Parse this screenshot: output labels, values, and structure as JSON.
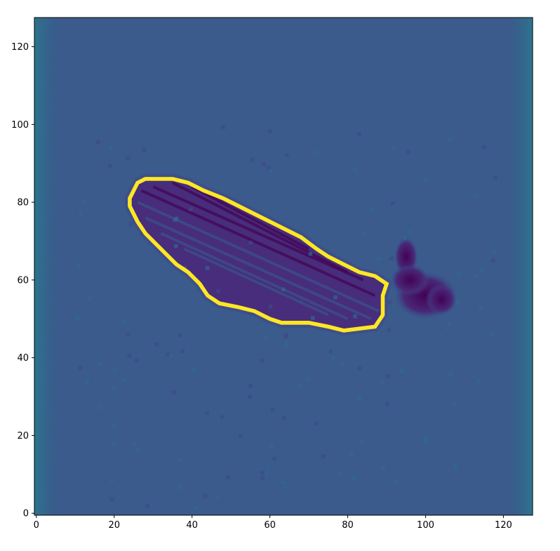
{
  "image": {
    "description_colormap": "viridis",
    "grid_size": [
      128,
      128
    ],
    "subject": "wing"
  },
  "axes": {
    "x_ticks": [
      "0",
      "20",
      "40",
      "60",
      "80",
      "100",
      "120"
    ],
    "y_ticks": [
      "0",
      "20",
      "40",
      "60",
      "80",
      "100",
      "120"
    ],
    "x_tick_values": [
      0,
      20,
      40,
      60,
      80,
      100,
      120
    ],
    "y_tick_values": [
      0,
      20,
      40,
      60,
      80,
      100,
      120
    ],
    "xlim": [
      -0.5,
      127.5
    ],
    "ylim": [
      127.5,
      -0.5
    ]
  },
  "contour": {
    "color": "#f0e626",
    "points": [
      [
        24,
        79
      ],
      [
        26,
        75
      ],
      [
        28,
        72
      ],
      [
        31,
        69
      ],
      [
        34,
        66
      ],
      [
        36,
        64
      ],
      [
        39,
        62
      ],
      [
        42,
        59
      ],
      [
        44,
        56
      ],
      [
        47,
        54
      ],
      [
        52,
        53
      ],
      [
        56,
        52
      ],
      [
        60,
        50
      ],
      [
        63,
        49
      ],
      [
        70,
        49
      ],
      [
        75,
        48
      ],
      [
        79,
        47
      ],
      [
        87,
        48
      ],
      [
        89,
        51
      ],
      [
        89,
        56
      ],
      [
        90,
        59
      ],
      [
        87,
        61
      ],
      [
        83,
        62
      ],
      [
        79,
        64
      ],
      [
        75,
        66
      ],
      [
        72,
        68
      ],
      [
        68,
        71
      ],
      [
        64,
        73
      ],
      [
        60,
        75
      ],
      [
        56,
        77
      ],
      [
        52,
        79
      ],
      [
        48,
        81
      ],
      [
        43,
        83
      ],
      [
        39,
        85
      ],
      [
        35,
        86
      ],
      [
        28,
        86
      ],
      [
        26,
        85
      ],
      [
        25,
        83
      ],
      [
        24,
        81
      ]
    ]
  },
  "colors": {
    "background_teal": "#33638d",
    "edge_teal": "#2a788e",
    "dark_purple": "#440154",
    "deep_purple": "#472d7b",
    "contour_yellow": "#fde725",
    "contour_green": "#7ad151"
  }
}
